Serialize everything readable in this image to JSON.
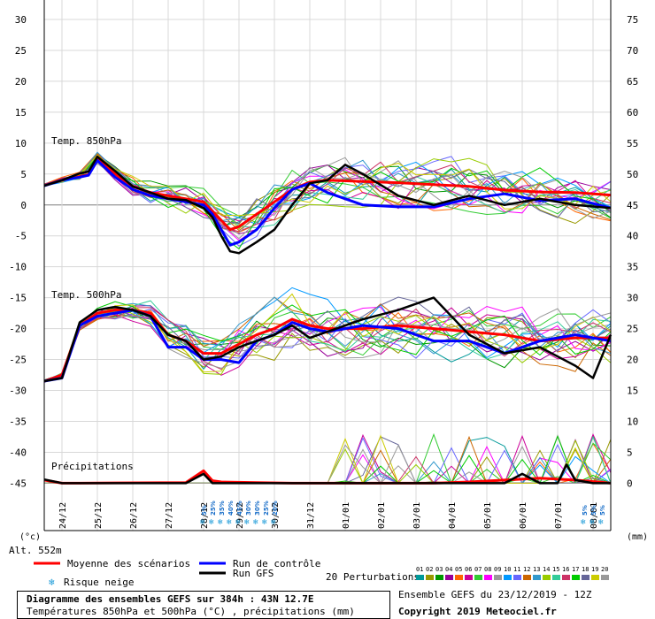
{
  "chart_data": {
    "type": "line",
    "title": "Diagramme des ensembles GEFS sur 384h : 43N 12.7E",
    "subtitle": "Températures 850hPa et 500hPa (°C) , précipitations (mm)",
    "run_info": "Ensemble GEFS du 23/12/2019 - 12Z",
    "copyright": "Copyright 2019 Meteociel.fr",
    "altitude_label": "Alt. 552m",
    "left_unit": "(°c)",
    "right_unit": "(mm)",
    "left_axis_ticks": [
      "30",
      "25",
      "20",
      "15",
      "10",
      "5",
      "0",
      "-5",
      "-10",
      "-15",
      "-20",
      "-25",
      "-30",
      "-35",
      "-40",
      "-45"
    ],
    "right_axis_ticks": [
      "75",
      "70",
      "65",
      "60",
      "55",
      "50",
      "45",
      "40",
      "35",
      "30",
      "25",
      "20",
      "15",
      "10",
      "5",
      "0"
    ],
    "left_ylim": [
      -45,
      30
    ],
    "right_ylim": [
      0,
      75
    ],
    "date_labels": [
      "24/12",
      "25/12",
      "26/12",
      "27/12",
      "28/12",
      "29/12",
      "30/12",
      "31/12",
      "01/01",
      "02/01",
      "03/01",
      "04/01",
      "05/01",
      "06/01",
      "07/01",
      "08/01"
    ],
    "x_range_hours": [
      0,
      384
    ],
    "panel_labels": {
      "t850": "Temp. 850hPa",
      "t500": "Temp. 500hPa",
      "precip": "Précipitations"
    },
    "snow_risk": {
      "label": "Risque neige",
      "values": [
        {
          "hour": 108,
          "pct": "5%"
        },
        {
          "hour": 114,
          "pct": "25%"
        },
        {
          "hour": 120,
          "pct": "35%"
        },
        {
          "hour": 126,
          "pct": "40%"
        },
        {
          "hour": 132,
          "pct": "45%"
        },
        {
          "hour": 138,
          "pct": "30%"
        },
        {
          "hour": 144,
          "pct": "30%"
        },
        {
          "hour": 150,
          "pct": "25%"
        },
        {
          "hour": 156,
          "pct": "20%"
        },
        {
          "hour": 366,
          "pct": "5%"
        },
        {
          "hour": 372,
          "pct": "5%"
        },
        {
          "hour": 378,
          "pct": "5%"
        }
      ]
    },
    "legend": {
      "mean": "Moyenne des scénarios",
      "control": "Run de contrôle",
      "gfs": "Run GFS",
      "perturbations": "20 Perturbations",
      "perturbation_ids": [
        "01",
        "02",
        "03",
        "04",
        "05",
        "06",
        "07",
        "08",
        "09",
        "10",
        "11",
        "12",
        "13",
        "14",
        "15",
        "16",
        "17",
        "18",
        "19",
        "20"
      ]
    },
    "colors": {
      "mean": "#ff0000",
      "control": "#0000ff",
      "gfs": "#000000",
      "perturbations": [
        "#009999",
        "#999900",
        "#009900",
        "#990099",
        "#ff6600",
        "#cc0099",
        "#33cc33",
        "#ff00ff",
        "#999999",
        "#0099ff",
        "#6666ff",
        "#cc6600",
        "#3399cc",
        "#99cc00",
        "#33cc99",
        "#cc3366",
        "#00cc00",
        "#666699",
        "#cccc00",
        "#999999"
      ]
    },
    "series": [
      {
        "name": "Moyenne des scénarios",
        "panel": "t850",
        "points": [
          [
            0,
            3.2
          ],
          [
            12,
            4
          ],
          [
            24,
            4.6
          ],
          [
            30,
            4.9
          ],
          [
            36,
            7.6
          ],
          [
            48,
            5
          ],
          [
            60,
            3
          ],
          [
            72,
            2
          ],
          [
            84,
            1.5
          ],
          [
            96,
            1
          ],
          [
            108,
            0.5
          ],
          [
            114,
            -1
          ],
          [
            120,
            -2.5
          ],
          [
            126,
            -4
          ],
          [
            132,
            -3.5
          ],
          [
            144,
            -1.5
          ],
          [
            156,
            0.5
          ],
          [
            168,
            2.5
          ],
          [
            180,
            3.7
          ],
          [
            192,
            4
          ],
          [
            216,
            3.8
          ],
          [
            240,
            3.6
          ],
          [
            264,
            3.3
          ],
          [
            288,
            3
          ],
          [
            312,
            2.4
          ],
          [
            336,
            2.1
          ],
          [
            360,
            2
          ],
          [
            384,
            1.6
          ]
        ]
      },
      {
        "name": "Run de contrôle",
        "panel": "t850",
        "points": [
          [
            0,
            3.1
          ],
          [
            12,
            4
          ],
          [
            24,
            4.5
          ],
          [
            30,
            4.8
          ],
          [
            36,
            7.2
          ],
          [
            48,
            4.5
          ],
          [
            60,
            2.5
          ],
          [
            72,
            1.5
          ],
          [
            84,
            1
          ],
          [
            96,
            0.5
          ],
          [
            108,
            0
          ],
          [
            114,
            -1.5
          ],
          [
            120,
            -4
          ],
          [
            126,
            -6.5
          ],
          [
            132,
            -6
          ],
          [
            144,
            -4
          ],
          [
            156,
            -0.5
          ],
          [
            168,
            2.5
          ],
          [
            180,
            3.5
          ],
          [
            192,
            2
          ],
          [
            216,
            0
          ],
          [
            240,
            -0.3
          ],
          [
            264,
            -0.3
          ],
          [
            288,
            1
          ],
          [
            312,
            1.8
          ],
          [
            336,
            0.7
          ],
          [
            360,
            1
          ],
          [
            384,
            -0.5
          ]
        ]
      },
      {
        "name": "Run GFS",
        "panel": "t850",
        "points": [
          [
            0,
            3.1
          ],
          [
            12,
            4
          ],
          [
            24,
            5.1
          ],
          [
            30,
            5.4
          ],
          [
            36,
            7.8
          ],
          [
            48,
            5.5
          ],
          [
            60,
            3
          ],
          [
            72,
            2
          ],
          [
            84,
            1
          ],
          [
            96,
            0.8
          ],
          [
            108,
            -0.5
          ],
          [
            114,
            -2
          ],
          [
            120,
            -5
          ],
          [
            126,
            -7.5
          ],
          [
            132,
            -7.8
          ],
          [
            144,
            -6
          ],
          [
            156,
            -4
          ],
          [
            168,
            0
          ],
          [
            180,
            3.5
          ],
          [
            192,
            4
          ],
          [
            204,
            6.5
          ],
          [
            216,
            5
          ],
          [
            240,
            1.5
          ],
          [
            264,
            0
          ],
          [
            288,
            1.5
          ],
          [
            312,
            0
          ],
          [
            336,
            1
          ],
          [
            360,
            0
          ],
          [
            384,
            -0.5
          ]
        ]
      },
      {
        "name": "Moyenne des scénarios",
        "panel": "t500",
        "points": [
          [
            0,
            -28.5
          ],
          [
            12,
            -27.5
          ],
          [
            24,
            -19.5
          ],
          [
            36,
            -17.5
          ],
          [
            48,
            -17
          ],
          [
            60,
            -17
          ],
          [
            72,
            -17.5
          ],
          [
            84,
            -21
          ],
          [
            96,
            -22
          ],
          [
            108,
            -24
          ],
          [
            120,
            -24
          ],
          [
            132,
            -22.5
          ],
          [
            144,
            -21
          ],
          [
            156,
            -20
          ],
          [
            168,
            -18.5
          ],
          [
            180,
            -19.5
          ],
          [
            192,
            -20
          ],
          [
            216,
            -20
          ],
          [
            240,
            -19.5
          ],
          [
            264,
            -20
          ],
          [
            288,
            -20.5
          ],
          [
            312,
            -21
          ],
          [
            336,
            -22
          ],
          [
            360,
            -21.5
          ],
          [
            384,
            -21.5
          ]
        ]
      },
      {
        "name": "Run de contrôle",
        "panel": "t500",
        "points": [
          [
            0,
            -28.5
          ],
          [
            12,
            -28
          ],
          [
            24,
            -19.5
          ],
          [
            36,
            -18
          ],
          [
            48,
            -17.5
          ],
          [
            60,
            -17
          ],
          [
            72,
            -18
          ],
          [
            84,
            -23
          ],
          [
            96,
            -23
          ],
          [
            108,
            -25
          ],
          [
            120,
            -25
          ],
          [
            132,
            -25.5
          ],
          [
            144,
            -22
          ],
          [
            156,
            -21
          ],
          [
            168,
            -19
          ],
          [
            180,
            -20
          ],
          [
            192,
            -20.5
          ],
          [
            216,
            -19.5
          ],
          [
            240,
            -20
          ],
          [
            264,
            -22
          ],
          [
            288,
            -22
          ],
          [
            312,
            -24
          ],
          [
            336,
            -22
          ],
          [
            360,
            -21
          ],
          [
            384,
            -22
          ]
        ]
      },
      {
        "name": "Run GFS",
        "panel": "t500",
        "points": [
          [
            0,
            -28.5
          ],
          [
            12,
            -28
          ],
          [
            24,
            -19
          ],
          [
            36,
            -17
          ],
          [
            48,
            -16.5
          ],
          [
            60,
            -17
          ],
          [
            72,
            -18
          ],
          [
            84,
            -21
          ],
          [
            96,
            -22
          ],
          [
            108,
            -25
          ],
          [
            120,
            -24.5
          ],
          [
            132,
            -23
          ],
          [
            144,
            -22
          ],
          [
            156,
            -21
          ],
          [
            168,
            -19.5
          ],
          [
            180,
            -21.5
          ],
          [
            192,
            -20.5
          ],
          [
            216,
            -18.5
          ],
          [
            240,
            -17
          ],
          [
            264,
            -15
          ],
          [
            288,
            -21
          ],
          [
            312,
            -24
          ],
          [
            336,
            -23
          ],
          [
            360,
            -26
          ],
          [
            372,
            -28
          ],
          [
            384,
            -21
          ]
        ]
      },
      {
        "name": "Moyenne des scénarios",
        "panel": "precip",
        "points": [
          [
            0,
            0.5
          ],
          [
            12,
            0
          ],
          [
            24,
            0
          ],
          [
            96,
            0.1
          ],
          [
            108,
            2
          ],
          [
            114,
            0.4
          ],
          [
            120,
            0.2
          ],
          [
            144,
            0.1
          ],
          [
            168,
            0
          ],
          [
            216,
            0
          ],
          [
            264,
            0
          ],
          [
            288,
            0.2
          ],
          [
            312,
            0.5
          ],
          [
            336,
            0.8
          ],
          [
            360,
            0.5
          ],
          [
            384,
            0
          ]
        ]
      },
      {
        "name": "Run GFS",
        "panel": "precip",
        "points": [
          [
            0,
            0.6
          ],
          [
            12,
            0
          ],
          [
            96,
            0
          ],
          [
            108,
            1.5
          ],
          [
            114,
            0
          ],
          [
            312,
            0
          ],
          [
            324,
            1.5
          ],
          [
            336,
            0
          ],
          [
            348,
            0
          ],
          [
            354,
            3
          ],
          [
            360,
            0.5
          ],
          [
            372,
            0
          ],
          [
            384,
            0
          ]
        ]
      }
    ]
  }
}
